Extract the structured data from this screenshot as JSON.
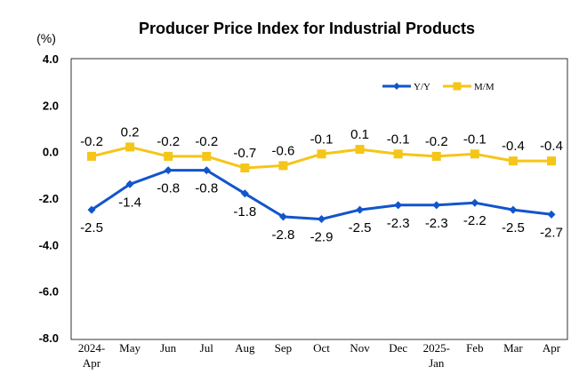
{
  "chart_data": {
    "type": "line",
    "title": "Producer Price Index for Industrial Products",
    "ylabel": "(%)",
    "xlabel": "",
    "ylim": [
      -8.0,
      4.0
    ],
    "yticks": [
      "4.0",
      "2.0",
      "0.0",
      "-2.0",
      "-4.0",
      "-6.0",
      "-8.0"
    ],
    "ytick_values": [
      4,
      2,
      0,
      -2,
      -4,
      -6,
      -8
    ],
    "categories": [
      [
        "2024-",
        "Apr"
      ],
      [
        "May"
      ],
      [
        "Jun"
      ],
      [
        "Jul"
      ],
      [
        "Aug"
      ],
      [
        "Sep"
      ],
      [
        "Oct"
      ],
      [
        "Nov"
      ],
      [
        "Dec"
      ],
      [
        "2025-",
        "Jan"
      ],
      [
        "Feb"
      ],
      [
        "Mar"
      ],
      [
        "Apr"
      ]
    ],
    "legend_position": "top-right",
    "grid": false,
    "series": [
      {
        "name": "Y/Y",
        "color": "#1155CC",
        "marker": "diamond",
        "values": [
          -2.5,
          -1.4,
          -0.8,
          -0.8,
          -1.8,
          -2.8,
          -2.9,
          -2.5,
          -2.3,
          -2.3,
          -2.2,
          -2.5,
          -2.7
        ],
        "labels": [
          "-2.5",
          "-1.4",
          "-0.8",
          "-0.8",
          "-1.8",
          "-2.8",
          "-2.9",
          "-2.5",
          "-2.3",
          "-2.3",
          "-2.2",
          "-2.5",
          "-2.7"
        ],
        "label_position": "below"
      },
      {
        "name": "M/M",
        "color": "#F5C518",
        "marker": "square",
        "values": [
          -0.2,
          0.2,
          -0.2,
          -0.2,
          -0.7,
          -0.6,
          -0.1,
          0.1,
          -0.1,
          -0.2,
          -0.1,
          -0.4,
          -0.4
        ],
        "labels": [
          "-0.2",
          "0.2",
          "-0.2",
          "-0.2",
          "-0.7",
          "-0.6",
          "-0.1",
          "0.1",
          "-0.1",
          "-0.2",
          "-0.1",
          "-0.4",
          "-0.4"
        ],
        "label_position": "above"
      }
    ]
  }
}
